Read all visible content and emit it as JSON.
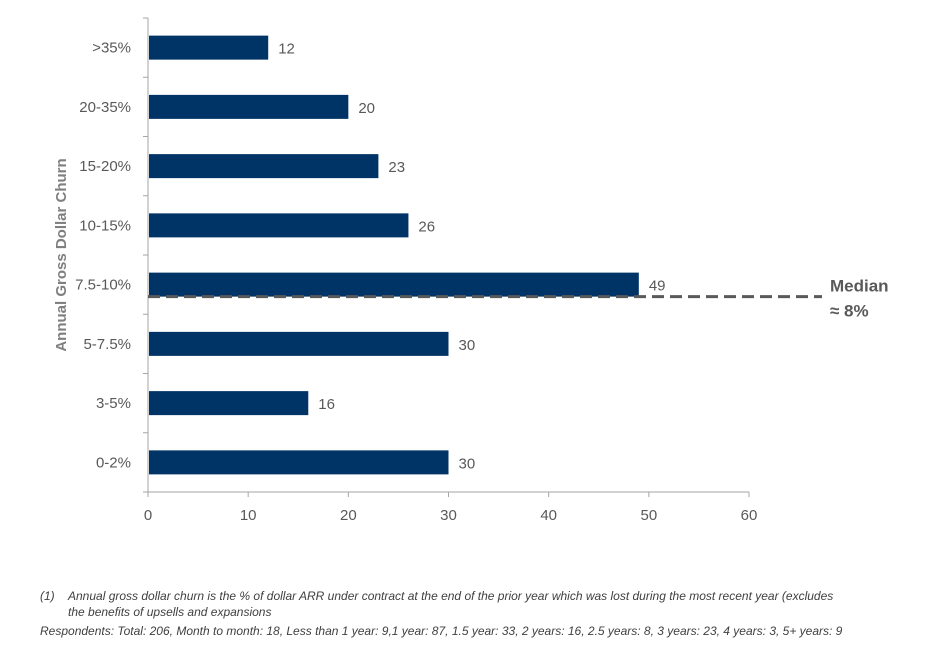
{
  "chart_data": {
    "type": "bar",
    "orientation": "horizontal",
    "categories": [
      ">35%",
      "20-35%",
      "15-20%",
      "10-15%",
      "7.5-10%",
      "5-7.5%",
      "3-5%",
      "0-2%"
    ],
    "values": [
      12,
      20,
      23,
      26,
      49,
      30,
      16,
      30
    ],
    "ylabel": "Annual Gross Dollar Churn",
    "xlabel": "",
    "xlim": [
      0,
      60
    ],
    "xticks": [
      0,
      10,
      20,
      30,
      40,
      50,
      60
    ],
    "grid": false,
    "bar_color": "#003366",
    "annotation": {
      "category": "7.5-10%",
      "line1": "Median",
      "line2": "≈ 8%",
      "line_color": "#595959"
    }
  },
  "footnotes": {
    "note1_marker": "(1)",
    "note1_line1": "Annual gross dollar churn is the % of dollar ARR under contract at the end of the prior year which was lost during the most recent year (excludes",
    "note1_line2": "the benefits of upsells and expansions",
    "respondents": "Respondents: Total: 206, Month to month: 18, Less than 1 year: 9,1 year: 87, 1.5 year: 33, 2 years: 16, 2.5 years: 8, 3 years: 23, 4 years: 3, 5+ years: 9"
  }
}
